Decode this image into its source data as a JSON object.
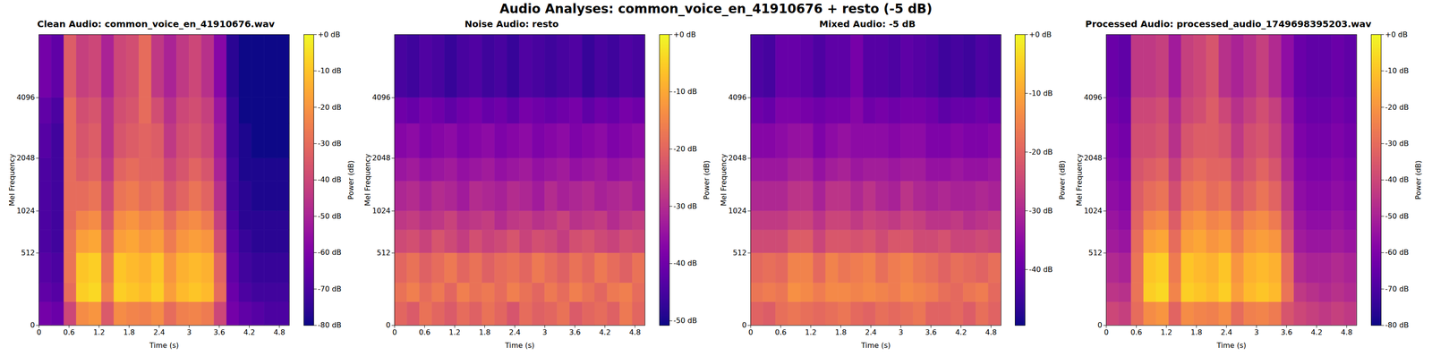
{
  "title": "Audio Analyses: common_voice_en_41910676 + resto (-5 dB)",
  "chart_data": [
    {
      "type": "heatmap",
      "title": "Clean Audio: common_voice_en_41910676.wav",
      "x_label": "Time (s)",
      "y_label": "Mel Frequency",
      "xlim": [
        0,
        5.0
      ],
      "xticks": [
        0,
        0.6,
        1.2,
        1.8,
        2.4,
        3,
        3.6,
        4.2,
        4.8
      ],
      "ylim": [
        0,
        8000
      ],
      "yticks": [
        0,
        512,
        1024,
        2048,
        4096
      ],
      "x_edges": [
        0,
        0.25,
        0.5,
        0.75,
        1.0,
        1.25,
        1.5,
        1.75,
        2.0,
        2.25,
        2.5,
        2.75,
        3.0,
        3.25,
        3.5,
        3.75,
        4.0,
        4.25,
        4.5,
        4.75,
        5.0
      ],
      "y_edges": [
        0,
        128,
        256,
        512,
        768,
        1024,
        1536,
        2048,
        3072,
        4096,
        8000
      ],
      "cells": [
        [
          -62,
          -64,
          -40,
          -22,
          -20,
          -35,
          -22,
          -24,
          -25,
          -22,
          -30,
          -25,
          -24,
          -26,
          -40,
          -62,
          -66,
          -68,
          -70,
          -70
        ],
        [
          -66,
          -68,
          -30,
          -8,
          -6,
          -25,
          -8,
          -10,
          -12,
          -8,
          -18,
          -12,
          -10,
          -12,
          -30,
          -64,
          -70,
          -72,
          -72,
          -72
        ],
        [
          -68,
          -70,
          -28,
          -10,
          -8,
          -28,
          -10,
          -12,
          -14,
          -10,
          -20,
          -14,
          -12,
          -14,
          -32,
          -66,
          -72,
          -74,
          -74,
          -74
        ],
        [
          -70,
          -72,
          -28,
          -18,
          -16,
          -32,
          -18,
          -16,
          -20,
          -18,
          -26,
          -20,
          -18,
          -20,
          -38,
          -68,
          -74,
          -76,
          -76,
          -76
        ],
        [
          -70,
          -72,
          -30,
          -24,
          -22,
          -36,
          -22,
          -20,
          -24,
          -22,
          -30,
          -24,
          -22,
          -26,
          -42,
          -70,
          -76,
          -76,
          -76,
          -76
        ],
        [
          -70,
          -72,
          -30,
          -30,
          -28,
          -40,
          -28,
          -26,
          -30,
          -28,
          -36,
          -32,
          -28,
          -32,
          -46,
          -72,
          -76,
          -78,
          -78,
          -78
        ],
        [
          -70,
          -72,
          -30,
          -34,
          -32,
          -44,
          -32,
          -30,
          -32,
          -32,
          -40,
          -36,
          -32,
          -36,
          -50,
          -72,
          -78,
          -78,
          -78,
          -78
        ],
        [
          -68,
          -72,
          -30,
          -36,
          -34,
          -46,
          -36,
          -34,
          -32,
          -34,
          -44,
          -38,
          -36,
          -40,
          -52,
          -74,
          -78,
          -80,
          -80,
          -80
        ],
        [
          -66,
          -70,
          -30,
          -38,
          -36,
          -46,
          -38,
          -36,
          -30,
          -38,
          -46,
          -40,
          -38,
          -42,
          -54,
          -74,
          -80,
          -80,
          -80,
          -80
        ],
        [
          -62,
          -66,
          -34,
          -42,
          -40,
          -50,
          -40,
          -38,
          -30,
          -44,
          -50,
          -44,
          -40,
          -46,
          -58,
          -76,
          -80,
          -80,
          -80,
          -80
        ]
      ],
      "colorbar": {
        "label": "Power (dB)",
        "color": "plasma",
        "range": [
          -80,
          0
        ],
        "ticks": [
          {
            "value": 0,
            "label": "+0 dB"
          },
          {
            "value": -10,
            "label": "-10 dB"
          },
          {
            "value": -20,
            "label": "-20 dB"
          },
          {
            "value": -30,
            "label": "-30 dB"
          },
          {
            "value": -40,
            "label": "-40 dB"
          },
          {
            "value": -50,
            "label": "-50 dB"
          },
          {
            "value": -60,
            "label": "-60 dB"
          },
          {
            "value": -70,
            "label": "-70 dB"
          },
          {
            "value": -80,
            "label": "-80 dB"
          }
        ]
      }
    },
    {
      "type": "heatmap",
      "title": "Noise Audio: resto",
      "x_label": "Time (s)",
      "y_label": "Mel Frequency",
      "xlim": [
        0,
        5.0
      ],
      "xticks": [
        0,
        0.6,
        1.2,
        1.8,
        2.4,
        3,
        3.6,
        4.2,
        4.8
      ],
      "ylim": [
        0,
        8000
      ],
      "yticks": [
        0,
        512,
        1024,
        2048,
        4096
      ],
      "x_edges": [
        0,
        0.25,
        0.5,
        0.75,
        1.0,
        1.25,
        1.5,
        1.75,
        2.0,
        2.25,
        2.5,
        2.75,
        3.0,
        3.25,
        3.5,
        3.75,
        4.0,
        4.25,
        4.5,
        4.75,
        5.0
      ],
      "y_edges": [
        0,
        128,
        256,
        512,
        768,
        1024,
        1536,
        2048,
        3072,
        4096,
        8000
      ],
      "cells": [
        [
          -20,
          -22,
          -18,
          -20,
          -22,
          -19,
          -21,
          -18,
          -20,
          -23,
          -19,
          -21,
          -20,
          -18,
          -22,
          -20,
          -19,
          -21,
          -17,
          -20
        ],
        [
          -18,
          -16,
          -19,
          -17,
          -20,
          -16,
          -18,
          -17,
          -19,
          -16,
          -18,
          -20,
          -17,
          -19,
          -16,
          -18,
          -20,
          -17,
          -16,
          -19
        ],
        [
          -20,
          -18,
          -21,
          -19,
          -17,
          -20,
          -18,
          -21,
          -19,
          -18,
          -20,
          -17,
          -19,
          -21,
          -18,
          -20,
          -17,
          -19,
          -21,
          -18
        ],
        [
          -25,
          -24,
          -26,
          -23,
          -25,
          -27,
          -24,
          -26,
          -25,
          -23,
          -26,
          -24,
          -25,
          -27,
          -24,
          -23,
          -25,
          -26,
          -24,
          -25
        ],
        [
          -28,
          -27,
          -29,
          -28,
          -26,
          -29,
          -28,
          -27,
          -30,
          -28,
          -27,
          -29,
          -28,
          -26,
          -29,
          -28,
          -27,
          -30,
          -28,
          -27
        ],
        [
          -31,
          -30,
          -32,
          -30,
          -31,
          -33,
          -30,
          -31,
          -32,
          -30,
          -31,
          -33,
          -30,
          -32,
          -31,
          -30,
          -32,
          -31,
          -30,
          -32
        ],
        [
          -34,
          -33,
          -35,
          -34,
          -33,
          -35,
          -34,
          -33,
          -35,
          -34,
          -33,
          -35,
          -34,
          -33,
          -35,
          -34,
          -33,
          -35,
          -34,
          -33
        ],
        [
          -37,
          -36,
          -38,
          -37,
          -36,
          -38,
          -37,
          -36,
          -38,
          -37,
          -36,
          -38,
          -37,
          -36,
          -38,
          -37,
          -36,
          -38,
          -37,
          -36
        ],
        [
          -40,
          -41,
          -39,
          -40,
          -42,
          -40,
          -39,
          -41,
          -40,
          -42,
          -39,
          -40,
          -41,
          -40,
          -39,
          -42,
          -40,
          -41,
          -39,
          -40
        ],
        [
          -45,
          -46,
          -44,
          -45,
          -47,
          -45,
          -44,
          -46,
          -45,
          -47,
          -44,
          -45,
          -46,
          -45,
          -44,
          -47,
          -45,
          -46,
          -44,
          -45
        ]
      ],
      "colorbar": {
        "label": "Power (dB)",
        "color": "plasma",
        "range": [
          -50.8,
          0
        ],
        "ticks": [
          {
            "value": 0,
            "label": "+0 dB"
          },
          {
            "value": -10,
            "label": "-10 dB"
          },
          {
            "value": -20,
            "label": "-20 dB"
          },
          {
            "value": -30,
            "label": "-30 dB"
          },
          {
            "value": -40,
            "label": "-40 dB"
          },
          {
            "value": -50,
            "label": "-50 dB"
          }
        ]
      }
    },
    {
      "type": "heatmap",
      "title": "Mixed Audio: -5 dB",
      "x_label": "Time (s)",
      "y_label": "Mel Frequency",
      "xlim": [
        0,
        5.0
      ],
      "xticks": [
        0,
        0.6,
        1.2,
        1.8,
        2.4,
        3,
        3.6,
        4.2,
        4.8
      ],
      "ylim": [
        0,
        8000
      ],
      "yticks": [
        0,
        512,
        1024,
        2048,
        4096
      ],
      "x_edges": [
        0,
        0.25,
        0.5,
        0.75,
        1.0,
        1.25,
        1.5,
        1.75,
        2.0,
        2.25,
        2.5,
        2.75,
        3.0,
        3.25,
        3.5,
        3.75,
        4.0,
        4.25,
        4.5,
        4.75,
        5.0
      ],
      "y_edges": [
        0,
        128,
        256,
        512,
        768,
        1024,
        1536,
        2048,
        3072,
        4096,
        8000
      ],
      "cells": [
        [
          -20,
          -21,
          -18,
          -17,
          -18,
          -19,
          -18,
          -17,
          -19,
          -20,
          -18,
          -19,
          -18,
          -17,
          -20,
          -20,
          -19,
          -21,
          -18,
          -20
        ],
        [
          -17,
          -16,
          -17,
          -13,
          -14,
          -16,
          -14,
          -14,
          -15,
          -14,
          -15,
          -16,
          -14,
          -15,
          -16,
          -18,
          -19,
          -17,
          -16,
          -19
        ],
        [
          -19,
          -18,
          -19,
          -15,
          -15,
          -19,
          -15,
          -17,
          -16,
          -15,
          -18,
          -16,
          -15,
          -17,
          -18,
          -20,
          -18,
          -19,
          -20,
          -18
        ],
        [
          -24,
          -24,
          -24,
          -21,
          -21,
          -25,
          -22,
          -22,
          -23,
          -22,
          -24,
          -22,
          -22,
          -24,
          -24,
          -23,
          -25,
          -25,
          -24,
          -25
        ],
        [
          -27,
          -27,
          -27,
          -25,
          -25,
          -28,
          -25,
          -25,
          -27,
          -25,
          -26,
          -27,
          -25,
          -26,
          -28,
          -28,
          -27,
          -29,
          -28,
          -27
        ],
        [
          -30,
          -30,
          -30,
          -28,
          -28,
          -31,
          -28,
          -28,
          -30,
          -28,
          -30,
          -31,
          -28,
          -30,
          -31,
          -30,
          -31,
          -31,
          -30,
          -31
        ],
        [
          -33,
          -33,
          -33,
          -31,
          -31,
          -34,
          -32,
          -31,
          -33,
          -32,
          -32,
          -33,
          -32,
          -32,
          -34,
          -34,
          -33,
          -34,
          -34,
          -33
        ],
        [
          -36,
          -36,
          -35,
          -34,
          -34,
          -37,
          -35,
          -34,
          -35,
          -35,
          -35,
          -36,
          -35,
          -35,
          -37,
          -37,
          -36,
          -37,
          -37,
          -36
        ],
        [
          -39,
          -40,
          -37,
          -37,
          -38,
          -39,
          -38,
          -38,
          -36,
          -39,
          -38,
          -39,
          -38,
          -38,
          -39,
          -41,
          -40,
          -40,
          -39,
          -40
        ],
        [
          -43,
          -44,
          -40,
          -40,
          -41,
          -43,
          -41,
          -41,
          -38,
          -42,
          -42,
          -43,
          -41,
          -42,
          -43,
          -45,
          -44,
          -45,
          -43,
          -44
        ]
      ],
      "colorbar": {
        "label": "Power (dB)",
        "color": "plasma",
        "range": [
          -49.5,
          0
        ],
        "ticks": [
          {
            "value": 0,
            "label": "+0 dB"
          },
          {
            "value": -10,
            "label": "-10 dB"
          },
          {
            "value": -20,
            "label": "-20 dB"
          },
          {
            "value": -30,
            "label": "-30 dB"
          },
          {
            "value": -40,
            "label": "-40 dB"
          }
        ]
      }
    },
    {
      "type": "heatmap",
      "title": "Processed Audio: processed_audio_1749698395203.wav",
      "x_label": "Time (s)",
      "y_label": "Mel Frequency",
      "xlim": [
        0,
        5.0
      ],
      "xticks": [
        0,
        0.6,
        1.2,
        1.8,
        2.4,
        3,
        3.6,
        4.2,
        4.8
      ],
      "ylim": [
        0,
        8000
      ],
      "yticks": [
        0,
        512,
        1024,
        2048,
        4096
      ],
      "x_edges": [
        0,
        0.25,
        0.5,
        0.75,
        1.0,
        1.25,
        1.5,
        1.75,
        2.0,
        2.25,
        2.5,
        2.75,
        3.0,
        3.25,
        3.5,
        3.75,
        4.0,
        4.25,
        4.5,
        4.75,
        5.0
      ],
      "y_edges": [
        0,
        128,
        256,
        512,
        768,
        1024,
        1536,
        2048,
        3072,
        4096,
        8000
      ],
      "cells": [
        [
          -40,
          -42,
          -30,
          -22,
          -20,
          -32,
          -22,
          -24,
          -25,
          -22,
          -30,
          -25,
          -24,
          -26,
          -36,
          -40,
          -42,
          -44,
          -42,
          -44
        ],
        [
          -45,
          -46,
          -28,
          -8,
          -6,
          -24,
          -8,
          -10,
          -12,
          -8,
          -18,
          -12,
          -10,
          -12,
          -28,
          -44,
          -46,
          -48,
          -46,
          -48
        ],
        [
          -48,
          -50,
          -28,
          -10,
          -8,
          -26,
          -10,
          -12,
          -14,
          -10,
          -20,
          -14,
          -12,
          -14,
          -30,
          -48,
          -50,
          -50,
          -48,
          -50
        ],
        [
          -52,
          -54,
          -30,
          -18,
          -16,
          -30,
          -18,
          -16,
          -20,
          -18,
          -26,
          -20,
          -18,
          -20,
          -36,
          -52,
          -54,
          -54,
          -52,
          -54
        ],
        [
          -54,
          -56,
          -32,
          -24,
          -22,
          -34,
          -22,
          -20,
          -24,
          -22,
          -30,
          -24,
          -22,
          -26,
          -40,
          -54,
          -56,
          -56,
          -54,
          -56
        ],
        [
          -56,
          -58,
          -34,
          -30,
          -28,
          -38,
          -28,
          -26,
          -30,
          -28,
          -36,
          -32,
          -28,
          -32,
          -44,
          -56,
          -58,
          -58,
          -56,
          -58
        ],
        [
          -58,
          -60,
          -36,
          -34,
          -32,
          -42,
          -32,
          -30,
          -32,
          -32,
          -40,
          -36,
          -32,
          -36,
          -48,
          -58,
          -60,
          -60,
          -58,
          -60
        ],
        [
          -60,
          -62,
          -38,
          -38,
          -36,
          -46,
          -36,
          -34,
          -34,
          -36,
          -44,
          -38,
          -36,
          -40,
          -50,
          -60,
          -62,
          -62,
          -60,
          -62
        ],
        [
          -62,
          -64,
          -40,
          -40,
          -38,
          -48,
          -40,
          -38,
          -34,
          -40,
          -46,
          -42,
          -38,
          -42,
          -52,
          -62,
          -64,
          -64,
          -62,
          -64
        ],
        [
          -64,
          -66,
          -44,
          -44,
          -42,
          -52,
          -42,
          -40,
          -36,
          -46,
          -50,
          -46,
          -42,
          -48,
          -56,
          -64,
          -66,
          -66,
          -64,
          -66
        ]
      ],
      "colorbar": {
        "label": "Power (dB)",
        "color": "plasma",
        "range": [
          -80,
          0
        ],
        "ticks": [
          {
            "value": 0,
            "label": "+0 dB"
          },
          {
            "value": -10,
            "label": "-10 dB"
          },
          {
            "value": -20,
            "label": "-20 dB"
          },
          {
            "value": -30,
            "label": "-30 dB"
          },
          {
            "value": -40,
            "label": "-40 dB"
          },
          {
            "value": -50,
            "label": "-50 dB"
          },
          {
            "value": -60,
            "label": "-60 dB"
          },
          {
            "value": -70,
            "label": "-70 dB"
          },
          {
            "value": -80,
            "label": "-80 dB"
          }
        ]
      }
    }
  ]
}
